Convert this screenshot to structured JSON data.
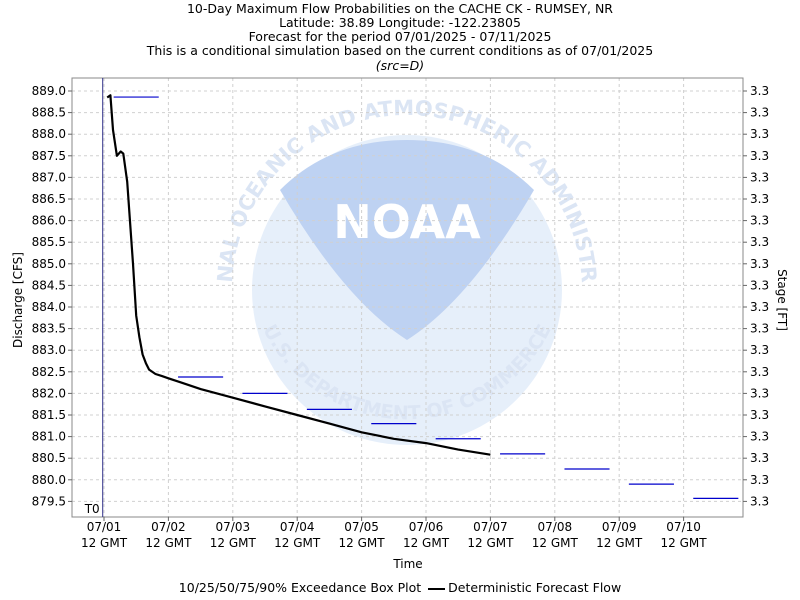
{
  "chart_data": {
    "type": "line",
    "title_lines": [
      "10-Day Maximum Flow Probabilities on the CACHE CK - RUMSEY, NR",
      "Latitude: 38.89 Longitude: -122.23805",
      "Forecast for the period 07/01/2025 - 07/11/2025",
      "This is a conditional simulation based on the current conditions as of 07/01/2025"
    ],
    "subtitle": "(src=D)",
    "xlabel": "Time",
    "ylabel": "Discharge [CFS]",
    "y2label": "Stage [FT]",
    "ylim": [
      879.3,
      889.3
    ],
    "xlim": [
      -0.5,
      10.0
    ],
    "yticks": [
      "889.0",
      "888.5",
      "888.0",
      "887.5",
      "887.0",
      "886.5",
      "886.0",
      "885.5",
      "885.0",
      "884.5",
      "884.0",
      "883.5",
      "883.0",
      "882.5",
      "882.0",
      "881.5",
      "881.0",
      "880.5",
      "880.0",
      "879.5"
    ],
    "y2ticks": [
      "3.3",
      "3.3",
      "3.3",
      "3.3",
      "3.3",
      "3.3",
      "3.3",
      "3.3",
      "3.3",
      "3.3",
      "3.3",
      "3.3",
      "3.3",
      "3.3",
      "3.3",
      "3.3",
      "3.3",
      "3.3",
      "3.3",
      "3.3"
    ],
    "xticks": [
      {
        "date": "07/01",
        "time": "12 GMT"
      },
      {
        "date": "07/02",
        "time": "12 GMT"
      },
      {
        "date": "07/03",
        "time": "12 GMT"
      },
      {
        "date": "07/04",
        "time": "12 GMT"
      },
      {
        "date": "07/05",
        "time": "12 GMT"
      },
      {
        "date": "07/06",
        "time": "12 GMT"
      },
      {
        "date": "07/07",
        "time": "12 GMT"
      },
      {
        "date": "07/08",
        "time": "12 GMT"
      },
      {
        "date": "07/09",
        "time": "12 GMT"
      },
      {
        "date": "07/10",
        "time": "12 GMT"
      }
    ],
    "t0_label": "T0",
    "t0_x": -0.02,
    "grid": true,
    "series": [
      {
        "name": "Deterministic Forecast Flow",
        "color": "#000000",
        "x": [
          0.05,
          0.1,
          0.14,
          0.2,
          0.26,
          0.3,
          0.36,
          0.45,
          0.5,
          0.55,
          0.6,
          0.65,
          0.7,
          0.8,
          0.9,
          1.0,
          1.2,
          1.5,
          2.0,
          2.5,
          3.0,
          3.5,
          4.0,
          4.5,
          5.0,
          5.5,
          6.0
        ],
        "y": [
          888.85,
          888.9,
          888.1,
          887.5,
          887.6,
          887.55,
          886.9,
          885.0,
          883.8,
          883.3,
          882.9,
          882.7,
          882.55,
          882.45,
          882.4,
          882.35,
          882.25,
          882.1,
          881.9,
          881.7,
          881.5,
          881.3,
          881.1,
          880.95,
          880.85,
          880.7,
          880.58
        ]
      }
    ],
    "exceedance_boxes": {
      "name": "10/25/50/75/90% Exceedance Box Plot",
      "color": "#0000cc",
      "boxes": [
        {
          "day": 0,
          "value": 888.86
        },
        {
          "day": 1,
          "value": 882.38
        },
        {
          "day": 2,
          "value": 882.0
        },
        {
          "day": 3,
          "value": 881.63
        },
        {
          "day": 4,
          "value": 881.3
        },
        {
          "day": 5,
          "value": 880.95
        },
        {
          "day": 6,
          "value": 880.6
        },
        {
          "day": 7,
          "value": 880.25
        },
        {
          "day": 8,
          "value": 879.9
        },
        {
          "day": 9,
          "value": 879.57
        }
      ]
    },
    "legend": {
      "box_label": "10/25/50/75/90% Exceedance Box Plot",
      "line_label": "Deterministic Forecast Flow",
      "placement": "bottom"
    },
    "watermark": {
      "logo_text": "NOAA",
      "ring_text": "NATIONAL OCEANIC AND ATMOSPHERIC ADMINISTRATION",
      "bottom_text": "U.S. DEPARTMENT OF COMMERCE"
    }
  }
}
